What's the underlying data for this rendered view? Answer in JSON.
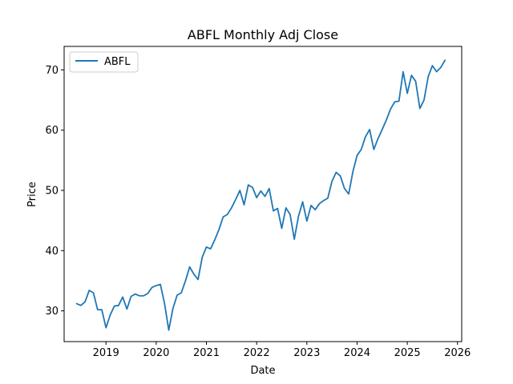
{
  "chart_data": {
    "type": "line",
    "title": "ABFL Monthly Adj Close",
    "xlabel": "Date",
    "ylabel": "Price",
    "x_tick_labels": [
      "2019",
      "2020",
      "2021",
      "2022",
      "2023",
      "2024",
      "2025",
      "2026"
    ],
    "y_tick_labels": [
      "30",
      "40",
      "50",
      "60",
      "70"
    ],
    "xlim": [
      "2018-03",
      "2026-02"
    ],
    "ylim": [
      24.9,
      73.9
    ],
    "grid": false,
    "legend_position": "top-left",
    "series": [
      {
        "name": "ABFL",
        "color": "#1f77b4",
        "points": [
          [
            "2018-06",
            31.2
          ],
          [
            "2018-07",
            30.9
          ],
          [
            "2018-08",
            31.5
          ],
          [
            "2018-09",
            33.4
          ],
          [
            "2018-10",
            33.0
          ],
          [
            "2018-11",
            30.2
          ],
          [
            "2018-12",
            30.2
          ],
          [
            "2019-01",
            27.2
          ],
          [
            "2019-02",
            29.3
          ],
          [
            "2019-03",
            30.8
          ],
          [
            "2019-04",
            30.9
          ],
          [
            "2019-05",
            32.3
          ],
          [
            "2019-06",
            30.3
          ],
          [
            "2019-07",
            32.4
          ],
          [
            "2019-08",
            32.8
          ],
          [
            "2019-09",
            32.5
          ],
          [
            "2019-10",
            32.5
          ],
          [
            "2019-11",
            32.9
          ],
          [
            "2019-12",
            33.9
          ],
          [
            "2020-01",
            34.2
          ],
          [
            "2020-02",
            34.4
          ],
          [
            "2020-03",
            31.2
          ],
          [
            "2020-04",
            26.8
          ],
          [
            "2020-05",
            30.4
          ],
          [
            "2020-06",
            32.6
          ],
          [
            "2020-07",
            33.0
          ],
          [
            "2020-08",
            35.0
          ],
          [
            "2020-09",
            37.3
          ],
          [
            "2020-10",
            36.1
          ],
          [
            "2020-11",
            35.2
          ],
          [
            "2020-12",
            38.9
          ],
          [
            "2021-01",
            40.6
          ],
          [
            "2021-02",
            40.3
          ],
          [
            "2021-03",
            41.8
          ],
          [
            "2021-04",
            43.5
          ],
          [
            "2021-05",
            45.6
          ],
          [
            "2021-06",
            46.0
          ],
          [
            "2021-07",
            47.1
          ],
          [
            "2021-08",
            48.5
          ],
          [
            "2021-09",
            50.0
          ],
          [
            "2021-10",
            47.6
          ],
          [
            "2021-11",
            50.9
          ],
          [
            "2021-12",
            50.5
          ],
          [
            "2022-01",
            48.8
          ],
          [
            "2022-02",
            49.9
          ],
          [
            "2022-03",
            49.0
          ],
          [
            "2022-04",
            50.3
          ],
          [
            "2022-05",
            46.6
          ],
          [
            "2022-06",
            47.0
          ],
          [
            "2022-07",
            43.7
          ],
          [
            "2022-08",
            47.1
          ],
          [
            "2022-09",
            46.0
          ],
          [
            "2022-10",
            41.9
          ],
          [
            "2022-11",
            45.7
          ],
          [
            "2022-12",
            48.1
          ],
          [
            "2023-01",
            44.9
          ],
          [
            "2023-02",
            47.5
          ],
          [
            "2023-03",
            46.8
          ],
          [
            "2023-04",
            47.8
          ],
          [
            "2023-05",
            48.3
          ],
          [
            "2023-06",
            48.7
          ],
          [
            "2023-07",
            51.5
          ],
          [
            "2023-08",
            53.0
          ],
          [
            "2023-09",
            52.4
          ],
          [
            "2023-10",
            50.3
          ],
          [
            "2023-11",
            49.4
          ],
          [
            "2023-12",
            53.1
          ],
          [
            "2024-01",
            55.8
          ],
          [
            "2024-02",
            56.8
          ],
          [
            "2024-03",
            58.9
          ],
          [
            "2024-04",
            60.1
          ],
          [
            "2024-05",
            56.8
          ],
          [
            "2024-06",
            58.6
          ],
          [
            "2024-07",
            60.1
          ],
          [
            "2024-08",
            61.7
          ],
          [
            "2024-09",
            63.5
          ],
          [
            "2024-10",
            64.7
          ],
          [
            "2024-11",
            64.8
          ],
          [
            "2024-12",
            69.7
          ],
          [
            "2025-01",
            66.1
          ],
          [
            "2025-02",
            69.1
          ],
          [
            "2025-03",
            68.1
          ],
          [
            "2025-04",
            63.6
          ],
          [
            "2025-05",
            65.0
          ],
          [
            "2025-06",
            68.9
          ],
          [
            "2025-07",
            70.7
          ],
          [
            "2025-08",
            69.7
          ],
          [
            "2025-09",
            70.4
          ],
          [
            "2025-10",
            71.6
          ]
        ]
      }
    ]
  }
}
